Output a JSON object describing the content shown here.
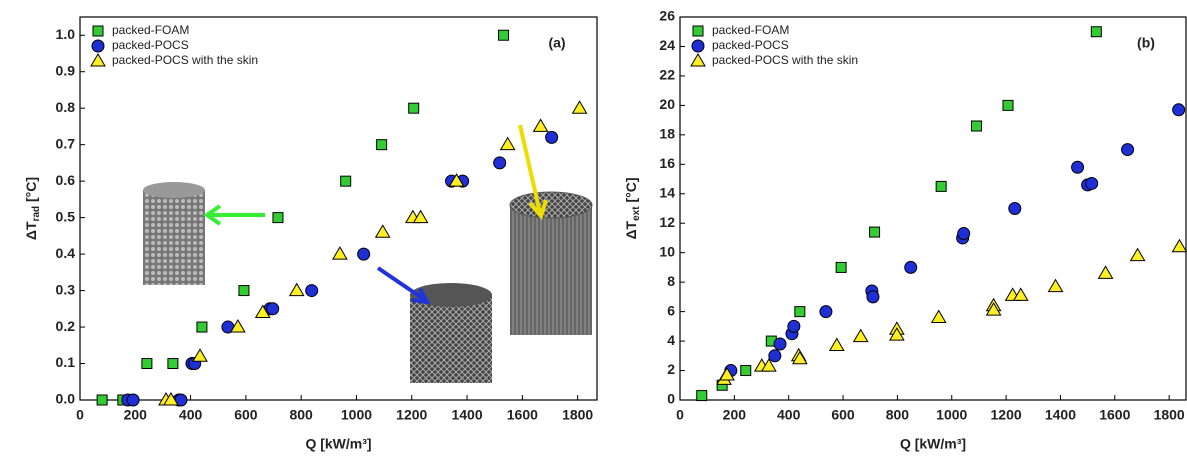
{
  "chart_data": [
    {
      "type": "scatter",
      "annotation": "(a)",
      "x_label": "Q [kW/m³]",
      "y_label": [
        "ΔT",
        "rad",
        " [°C]"
      ],
      "xlim": [
        0,
        1870
      ],
      "ylim": [
        0,
        1.05
      ],
      "xticks": [
        0,
        200,
        400,
        600,
        800,
        1000,
        1200,
        1400,
        1600,
        1800
      ],
      "yticks": [
        {
          "value": 0,
          "label": "0.0"
        },
        0.1,
        0.2,
        0.3,
        0.4,
        0.5,
        0.6,
        0.7,
        0.8,
        0.9,
        {
          "value": 1,
          "label": "1.0"
        }
      ],
      "legend": "top-left",
      "series": [
        {
          "name": "packed-FOAM",
          "color": "#33cc33",
          "marker": "square",
          "x": [
            80,
            155,
            242,
            336,
            441,
            593,
            716,
            961,
            1091,
            1207,
            1532
          ],
          "values": [
            0,
            0,
            0.1,
            0.1,
            0.2,
            0.3,
            0.5,
            0.6,
            0.7,
            0.8,
            1.0
          ]
        },
        {
          "name": "packed-POCS",
          "color": "#1f2fd6",
          "marker": "circle",
          "x": [
            173,
            192,
            358,
            365,
            405,
            415,
            535,
            687,
            697,
            838,
            1026,
            1344,
            1384,
            1518,
            1706
          ],
          "values": [
            0,
            0,
            0,
            0,
            0.1,
            0.1,
            0.2,
            0.25,
            0.25,
            0.3,
            0.4,
            0.6,
            0.6,
            0.65,
            0.72
          ]
        },
        {
          "name": "packed-POCS with the skin",
          "color": "#ffee22",
          "marker": "triangle",
          "x": [
            311,
            329,
            434,
            571,
            661,
            784,
            940,
            1095,
            1204,
            1232,
            1362,
            1547,
            1666,
            1807
          ],
          "values": [
            0,
            0,
            0.12,
            0.2,
            0.24,
            0.3,
            0.4,
            0.46,
            0.5,
            0.5,
            0.6,
            0.7,
            0.75,
            0.8
          ]
        }
      ]
    },
    {
      "type": "scatter",
      "annotation": "(b)",
      "x_label": "Q [kW/m³]",
      "y_label": [
        "ΔT",
        "ext",
        " [°C]"
      ],
      "xlim": [
        0,
        1862
      ],
      "ylim": [
        0,
        26
      ],
      "xticks": [
        0,
        200,
        400,
        600,
        800,
        1000,
        1200,
        1400,
        1600,
        1800
      ],
      "yticks": [
        0,
        2,
        4,
        6,
        8,
        10,
        12,
        14,
        16,
        18,
        20,
        22,
        24,
        26
      ],
      "legend": "top-left",
      "series": [
        {
          "name": "packed-FOAM",
          "color": "#33cc33",
          "marker": "square",
          "x": [
            80,
            155,
            242,
            336,
            441,
            593,
            716,
            961,
            1091,
            1207,
            1532
          ],
          "values": [
            0.3,
            1,
            2,
            4,
            6,
            9,
            11.4,
            14.5,
            18.6,
            20,
            25
          ]
        },
        {
          "name": "packed-POCS",
          "color": "#1f2fd6",
          "marker": "circle",
          "x": [
            187,
            349,
            368,
            412,
            419,
            537,
            706,
            710,
            849,
            1040,
            1044,
            1232,
            1463,
            1500,
            1515,
            1647,
            1835
          ],
          "values": [
            2,
            3,
            3.8,
            4.5,
            5,
            6,
            7.4,
            7,
            9,
            11,
            11.3,
            13,
            15.8,
            14.6,
            14.7,
            17,
            19.7
          ]
        },
        {
          "name": "packed-POCS with the skin",
          "color": "#ffee22",
          "marker": "triangle",
          "x": [
            162,
            173,
            301,
            327,
            437,
            441,
            577,
            665,
            798,
            798,
            952,
            1154,
            1154,
            1224,
            1254,
            1382,
            1566,
            1684,
            1838
          ],
          "values": [
            1.4,
            1.7,
            2.3,
            2.3,
            3,
            2.8,
            3.7,
            4.3,
            4.8,
            4.4,
            5.6,
            6.4,
            6.1,
            7.1,
            7.1,
            7.7,
            8.6,
            9.8,
            10.4
          ]
        }
      ]
    }
  ]
}
